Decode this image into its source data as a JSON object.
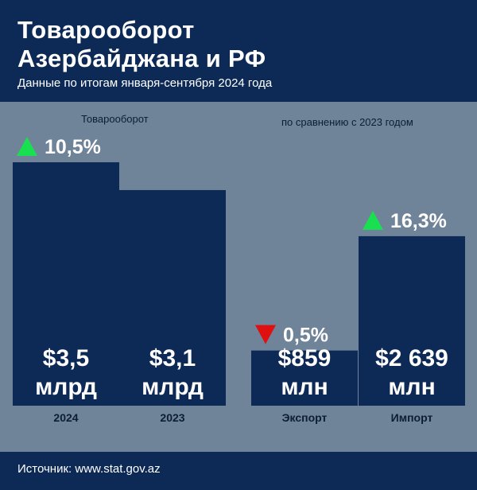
{
  "header": {
    "title": "Товарооборот\nАзербайджана и РФ",
    "subtitle": "Данные по итогам января-сентября 2024 года"
  },
  "captions": {
    "left": "Товарооборот",
    "right": "по сравнению с 2023 годом"
  },
  "footer": {
    "source": "Источник: www.stat.gov.az"
  },
  "colors": {
    "header_bg": "#0d2a56",
    "plot_bg": "#6f8399",
    "bar": "#0d2a56",
    "up": "#19e050",
    "down": "#e01010"
  },
  "chart_data": [
    {
      "type": "bar",
      "title": "Товарооборот",
      "unit": "млрд",
      "categories": [
        "2024",
        "2023"
      ],
      "values": [
        3.5,
        3.1
      ],
      "value_labels": [
        "$3,5\nмлрд",
        "$3,1\nмлрд"
      ],
      "annotations": [
        {
          "category": "2024",
          "direction": "up",
          "text": "10,5%"
        }
      ],
      "ylim": [
        0,
        3.5
      ]
    },
    {
      "type": "bar",
      "title": "по сравнению с 2023 годом",
      "unit": "млн",
      "categories": [
        "Экспорт",
        "Импорт"
      ],
      "values": [
        859,
        2639
      ],
      "value_labels": [
        "$859\nмлн",
        "$2 639\nмлн"
      ],
      "annotations": [
        {
          "category": "Экспорт",
          "direction": "down",
          "text": "0,5%"
        },
        {
          "category": "Импорт",
          "direction": "up",
          "text": "16,3%"
        }
      ],
      "ylim": [
        0,
        3790
      ]
    }
  ]
}
